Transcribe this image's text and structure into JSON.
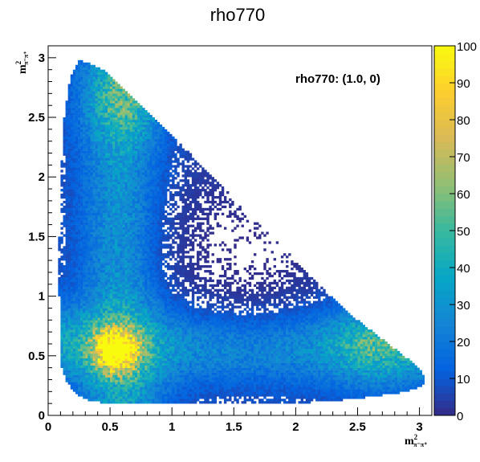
{
  "chart_data": {
    "type": "heatmap",
    "title": "rho770",
    "annotation": "rho770: (1.0, 0)",
    "xlabel": {
      "base": "m",
      "sup": "2",
      "sub": "π⁻π⁺"
    },
    "ylabel": {
      "base": "m",
      "sup": "2",
      "sub": "π⁻π⁺"
    },
    "xlim": [
      0,
      3.1
    ],
    "ylim": [
      0,
      3.1
    ],
    "xticks": [
      {
        "value": 0,
        "label": "0"
      },
      {
        "value": 0.5,
        "label": "0.5"
      },
      {
        "value": 1,
        "label": "1"
      },
      {
        "value": 1.5,
        "label": "1.5"
      },
      {
        "value": 2,
        "label": "2"
      },
      {
        "value": 2.5,
        "label": "2.5"
      },
      {
        "value": 3,
        "label": "3"
      }
    ],
    "yticks": [
      {
        "value": 0,
        "label": "0"
      },
      {
        "value": 0.5,
        "label": "0.5"
      },
      {
        "value": 1,
        "label": "1"
      },
      {
        "value": 1.5,
        "label": "1.5"
      },
      {
        "value": 2,
        "label": "2"
      },
      {
        "value": 2.5,
        "label": "2.5"
      },
      {
        "value": 3,
        "label": "3"
      }
    ],
    "zlim": [
      0,
      100
    ],
    "zticks": [
      {
        "value": 0,
        "label": "0"
      },
      {
        "value": 10,
        "label": "10"
      },
      {
        "value": 20,
        "label": "20"
      },
      {
        "value": 30,
        "label": "30"
      },
      {
        "value": 40,
        "label": "40"
      },
      {
        "value": 50,
        "label": "50"
      },
      {
        "value": 60,
        "label": "60"
      },
      {
        "value": 70,
        "label": "70"
      },
      {
        "value": 80,
        "label": "80"
      },
      {
        "value": 90,
        "label": "90"
      },
      {
        "value": 100,
        "label": "100"
      }
    ],
    "palette": [
      "#352a87",
      "#0363e1",
      "#1485d4",
      "#06a7c6",
      "#38b99e",
      "#92bf73",
      "#d9ba56",
      "#fcce2e",
      "#f9fb0e"
    ],
    "kinematic_boundary": [
      [
        0.1,
        0.51
      ],
      [
        0.11,
        0.4
      ],
      [
        0.15,
        0.28
      ],
      [
        0.22,
        0.18
      ],
      [
        0.33,
        0.12
      ],
      [
        0.5,
        0.1
      ],
      [
        1.0,
        0.1
      ],
      [
        2.0,
        0.1
      ],
      [
        2.5,
        0.14
      ],
      [
        2.9,
        0.2
      ],
      [
        3.02,
        0.25
      ],
      [
        3.05,
        0.3
      ],
      [
        3.0,
        0.4
      ],
      [
        2.5,
        0.8
      ],
      [
        2.0,
        1.3
      ],
      [
        1.5,
        1.82
      ],
      [
        1.0,
        2.35
      ],
      [
        0.6,
        2.75
      ],
      [
        0.45,
        2.9
      ],
      [
        0.32,
        2.96
      ],
      [
        0.25,
        2.98
      ],
      [
        0.18,
        2.85
      ],
      [
        0.13,
        2.5
      ],
      [
        0.1,
        2.0
      ],
      [
        0.09,
        1.5
      ],
      [
        0.09,
        1.0
      ]
    ],
    "density_features": [
      {
        "kind": "band",
        "axis": "x",
        "center": 0.6,
        "width": 0.22,
        "peak": 28
      },
      {
        "kind": "band",
        "axis": "y",
        "center": 0.6,
        "width": 0.22,
        "peak": 28
      },
      {
        "kind": "hotspot",
        "x": 0.55,
        "y": 0.55,
        "width": 0.12,
        "peak": 90
      },
      {
        "kind": "hotspot",
        "x": 0.6,
        "y": 2.65,
        "width": 0.22,
        "peak": 22
      },
      {
        "kind": "hotspot",
        "x": 2.65,
        "y": 0.6,
        "width": 0.25,
        "peak": 22
      },
      {
        "kind": "depletion",
        "x": 1.6,
        "y": 1.4,
        "width": 0.55,
        "depth": 0.95
      }
    ]
  }
}
